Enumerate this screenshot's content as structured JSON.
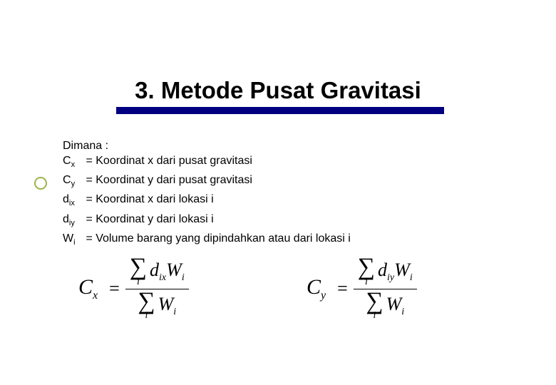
{
  "title": "3. Metode Pusat Gravitasi",
  "colors": {
    "underline": "#000080",
    "bullet_ring": "#9db34a",
    "text": "#000000",
    "background": "#ffffff"
  },
  "definitions": {
    "heading": "Dimana :",
    "rows": [
      {
        "sym": "C",
        "sub": "x",
        "desc": "= Koordinat x dari pusat gravitasi"
      },
      {
        "sym": "C",
        "sub": "y",
        "desc": "= Koordinat y dari pusat gravitasi"
      },
      {
        "sym": "d",
        "sub": "ix",
        "desc": "= Koordinat x dari lokasi i"
      },
      {
        "sym": "d",
        "sub": "iy",
        "desc": "= Koordinat y dari lokasi i"
      },
      {
        "sym": "W",
        "sub": "i",
        "desc": "= Volume barang yang dipindahkan atau dari lokasi i"
      }
    ]
  },
  "formulas": {
    "cx": {
      "lhs_var": "C",
      "lhs_sub": "x",
      "num_d_sub": "ix",
      "num_w_sub": "i",
      "den_w_sub": "i",
      "sum_index": "i"
    },
    "cy": {
      "lhs_var": "C",
      "lhs_sub": "y",
      "num_d_sub": "iy",
      "num_w_sub": "i",
      "den_w_sub": "i",
      "sum_index": "i"
    }
  }
}
